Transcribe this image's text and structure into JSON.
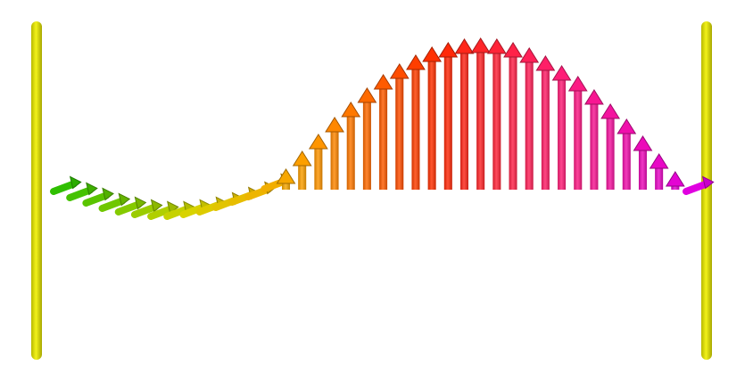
{
  "scene": {
    "background": "#ffffff",
    "post_color": "#e0e000",
    "arrow_count": 40,
    "wave": {
      "description_free": true,
      "gradient_stops": [
        "#2fbf00",
        "#d7d400",
        "#ff9b00",
        "#ff2a00",
        "#ff1d7a",
        "#e000e0"
      ]
    }
  }
}
